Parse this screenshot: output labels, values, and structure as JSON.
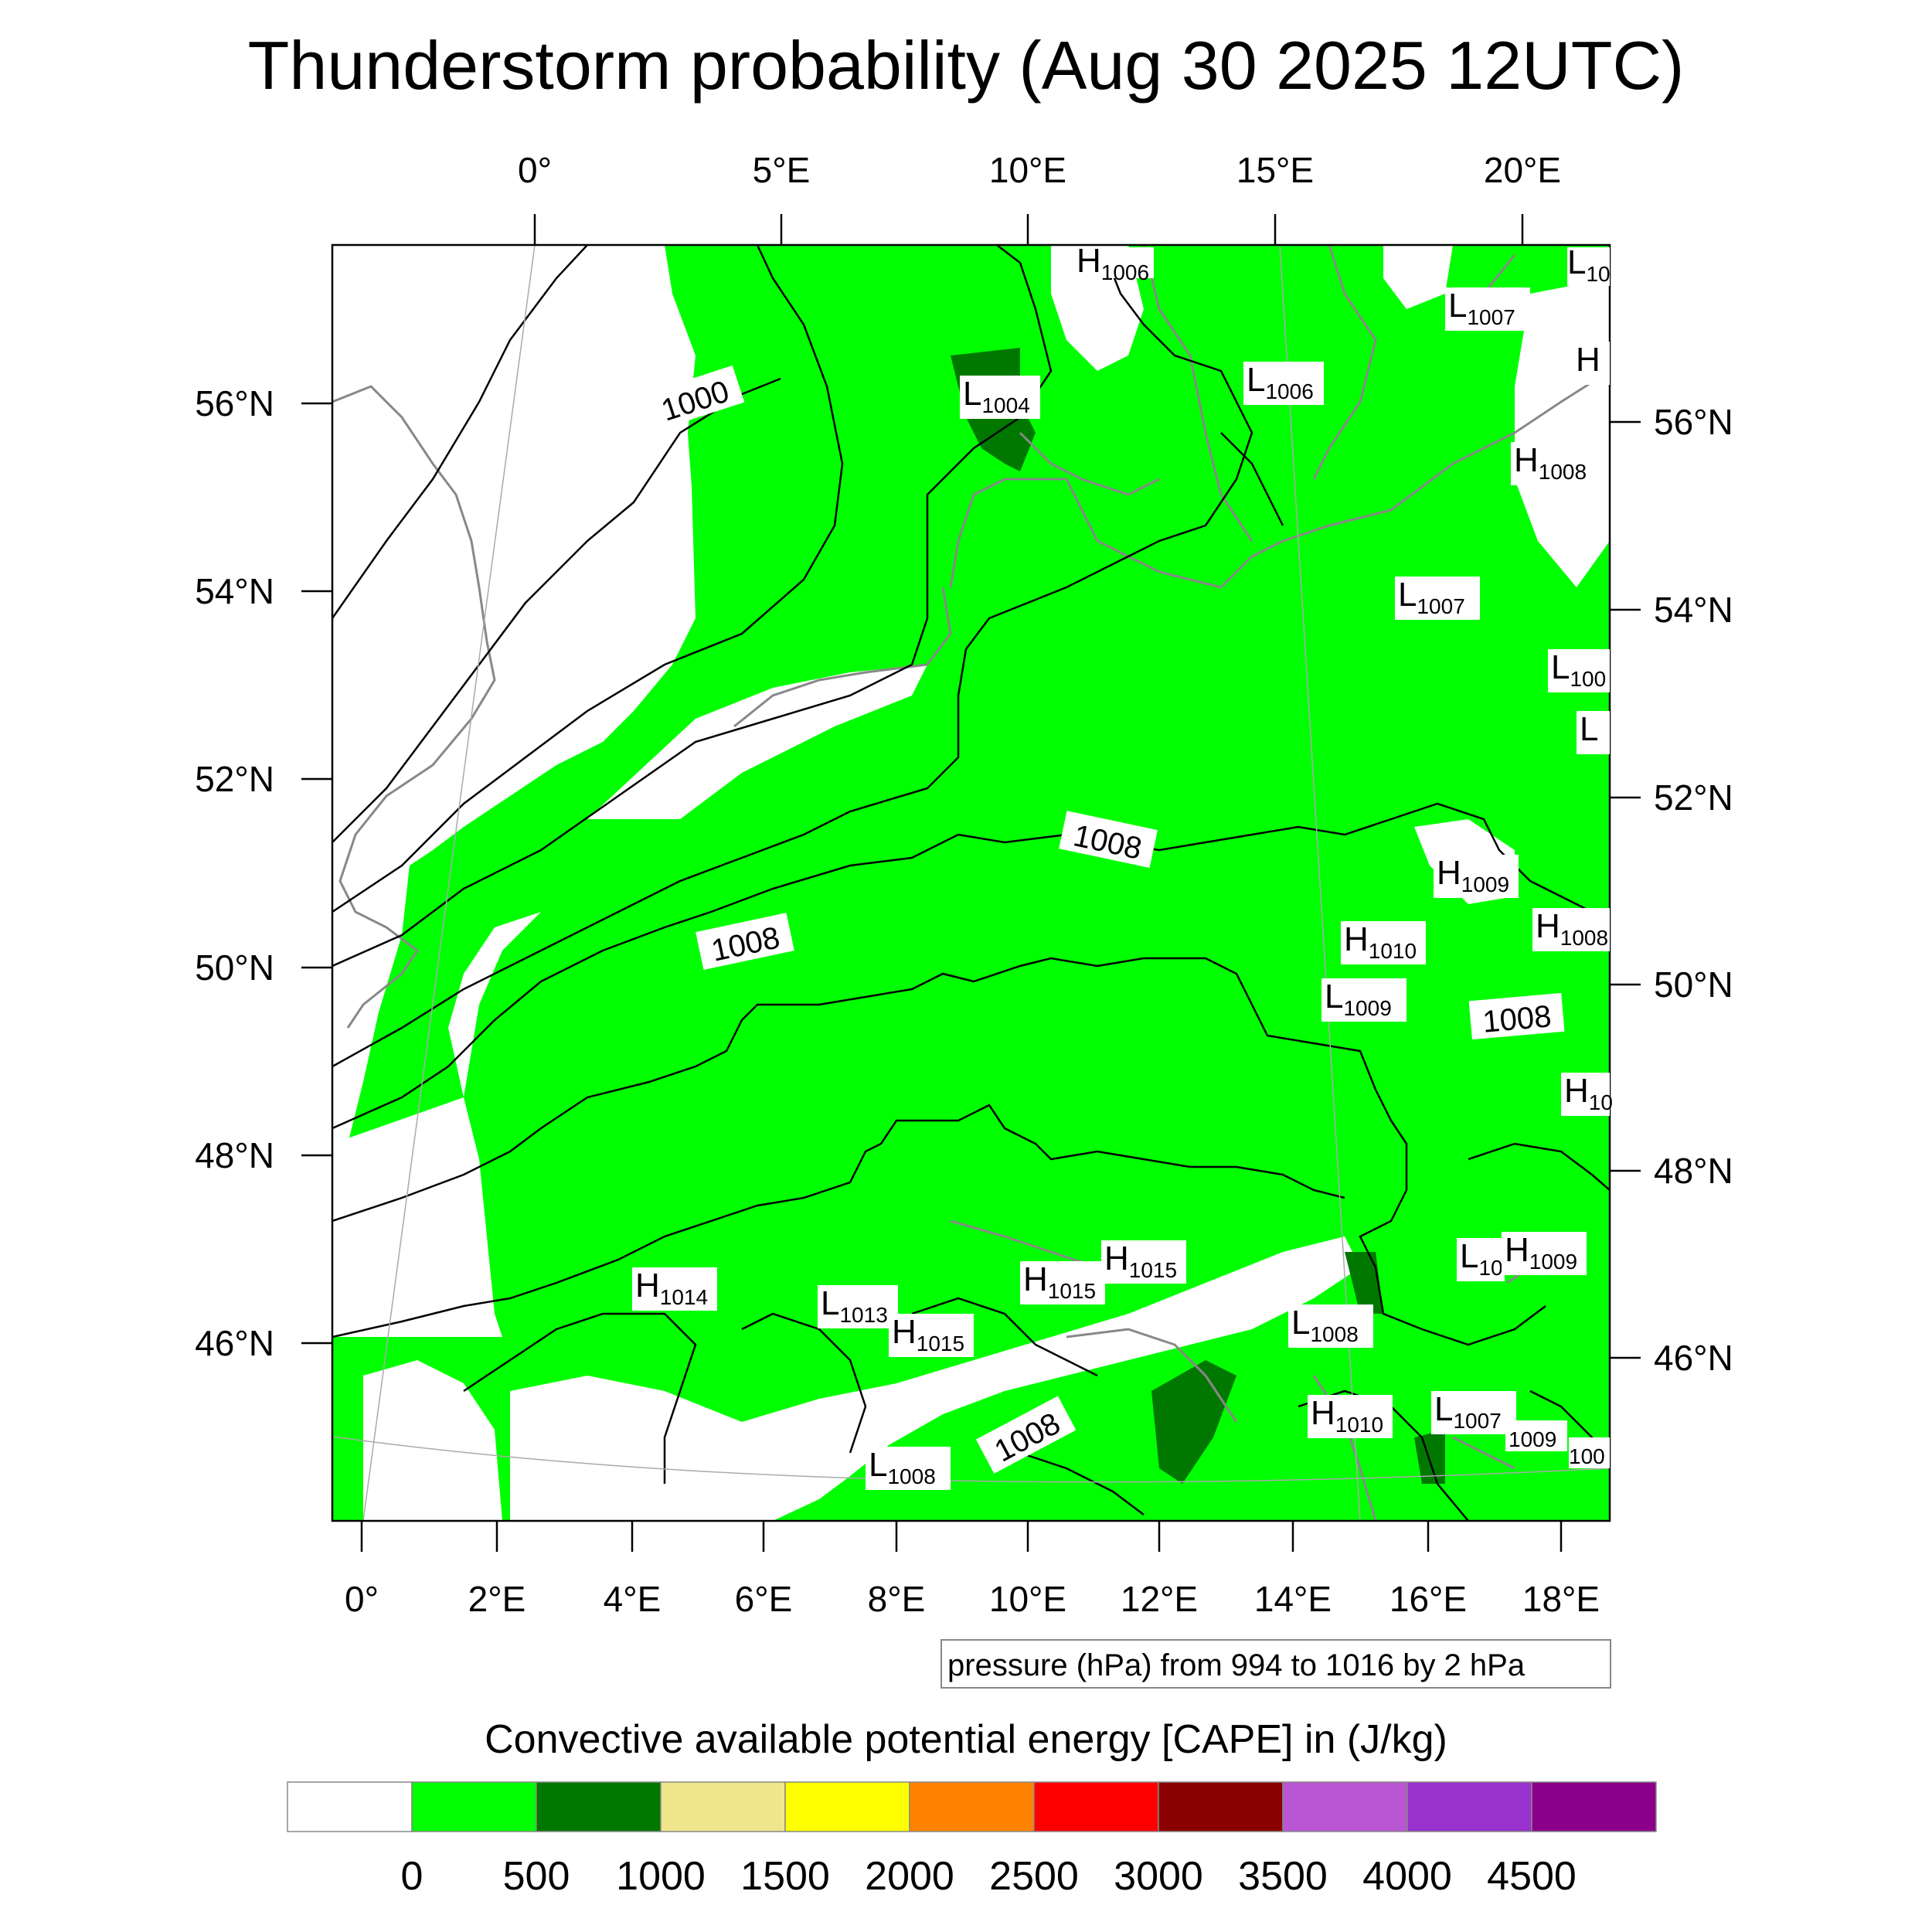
{
  "title": "Thunderstorm probability (Aug 30 2025 12UTC)",
  "top_lon_labels": [
    "0°",
    "5°E",
    "10°E",
    "15°E",
    "20°E"
  ],
  "bottom_lon_labels": [
    "0°",
    "2°E",
    "4°E",
    "6°E",
    "8°E",
    "10°E",
    "12°E",
    "14°E",
    "16°E",
    "18°E"
  ],
  "left_lat_labels": [
    "56°N",
    "54°N",
    "52°N",
    "50°N",
    "48°N",
    "46°N"
  ],
  "right_lat_labels": [
    "56°N",
    "54°N",
    "52°N",
    "50°N",
    "48°N",
    "46°N"
  ],
  "isobar_labels": [
    "1000",
    "1008",
    "1008",
    "1008",
    "1008"
  ],
  "pressure_systems": [
    {
      "letter": "H",
      "value": "1006"
    },
    {
      "letter": "L",
      "value": "10"
    },
    {
      "letter": "L",
      "value": "1007"
    },
    {
      "letter": "L",
      "value": "1004"
    },
    {
      "letter": "L",
      "value": "1006"
    },
    {
      "letter": "H",
      "value": ""
    },
    {
      "letter": "H",
      "value": "1008"
    },
    {
      "letter": "L",
      "value": "1007"
    },
    {
      "letter": "L",
      "value": "100"
    },
    {
      "letter": "L",
      "value": ""
    },
    {
      "letter": "H",
      "value": "1009"
    },
    {
      "letter": "H",
      "value": "1010"
    },
    {
      "letter": "H",
      "value": "1008"
    },
    {
      "letter": "L",
      "value": "1009"
    },
    {
      "letter": "H",
      "value": "10"
    },
    {
      "letter": "H",
      "value": "1014"
    },
    {
      "letter": "L",
      "value": "1013"
    },
    {
      "letter": "H",
      "value": "1015"
    },
    {
      "letter": "H",
      "value": "1015"
    },
    {
      "letter": "H",
      "value": "1015"
    },
    {
      "letter": "L",
      "value": "1008"
    },
    {
      "letter": "L",
      "value": "10"
    },
    {
      "letter": "H",
      "value": "1009"
    },
    {
      "letter": "H",
      "value": "1010"
    },
    {
      "letter": "L",
      "value": "1007"
    },
    {
      "letter": "",
      "value": "1009"
    },
    {
      "letter": "",
      "value": "100"
    },
    {
      "letter": "L",
      "value": "1008"
    }
  ],
  "contour_note": "pressure (hPa) from 994 to 1016 by 2 hPa",
  "colorbar": {
    "title": "Convective available potential energy [CAPE] in (J/kg)",
    "colors": [
      "#ffffff",
      "#00ff00",
      "#007800",
      "#f0e68c",
      "#ffff00",
      "#ff8200",
      "#ff0000",
      "#8b0000",
      "#ba55d3",
      "#9932cc",
      "#8b008b"
    ],
    "ticks": [
      "0",
      "500",
      "1000",
      "1500",
      "2000",
      "2500",
      "3000",
      "3500",
      "4000",
      "4500"
    ]
  },
  "map_colors": {
    "low_cape": "#ffffff",
    "cape_0_500": "#00ff00",
    "cape_500_1000": "#007800",
    "coastline": "#888888",
    "isobar": "#000000"
  }
}
